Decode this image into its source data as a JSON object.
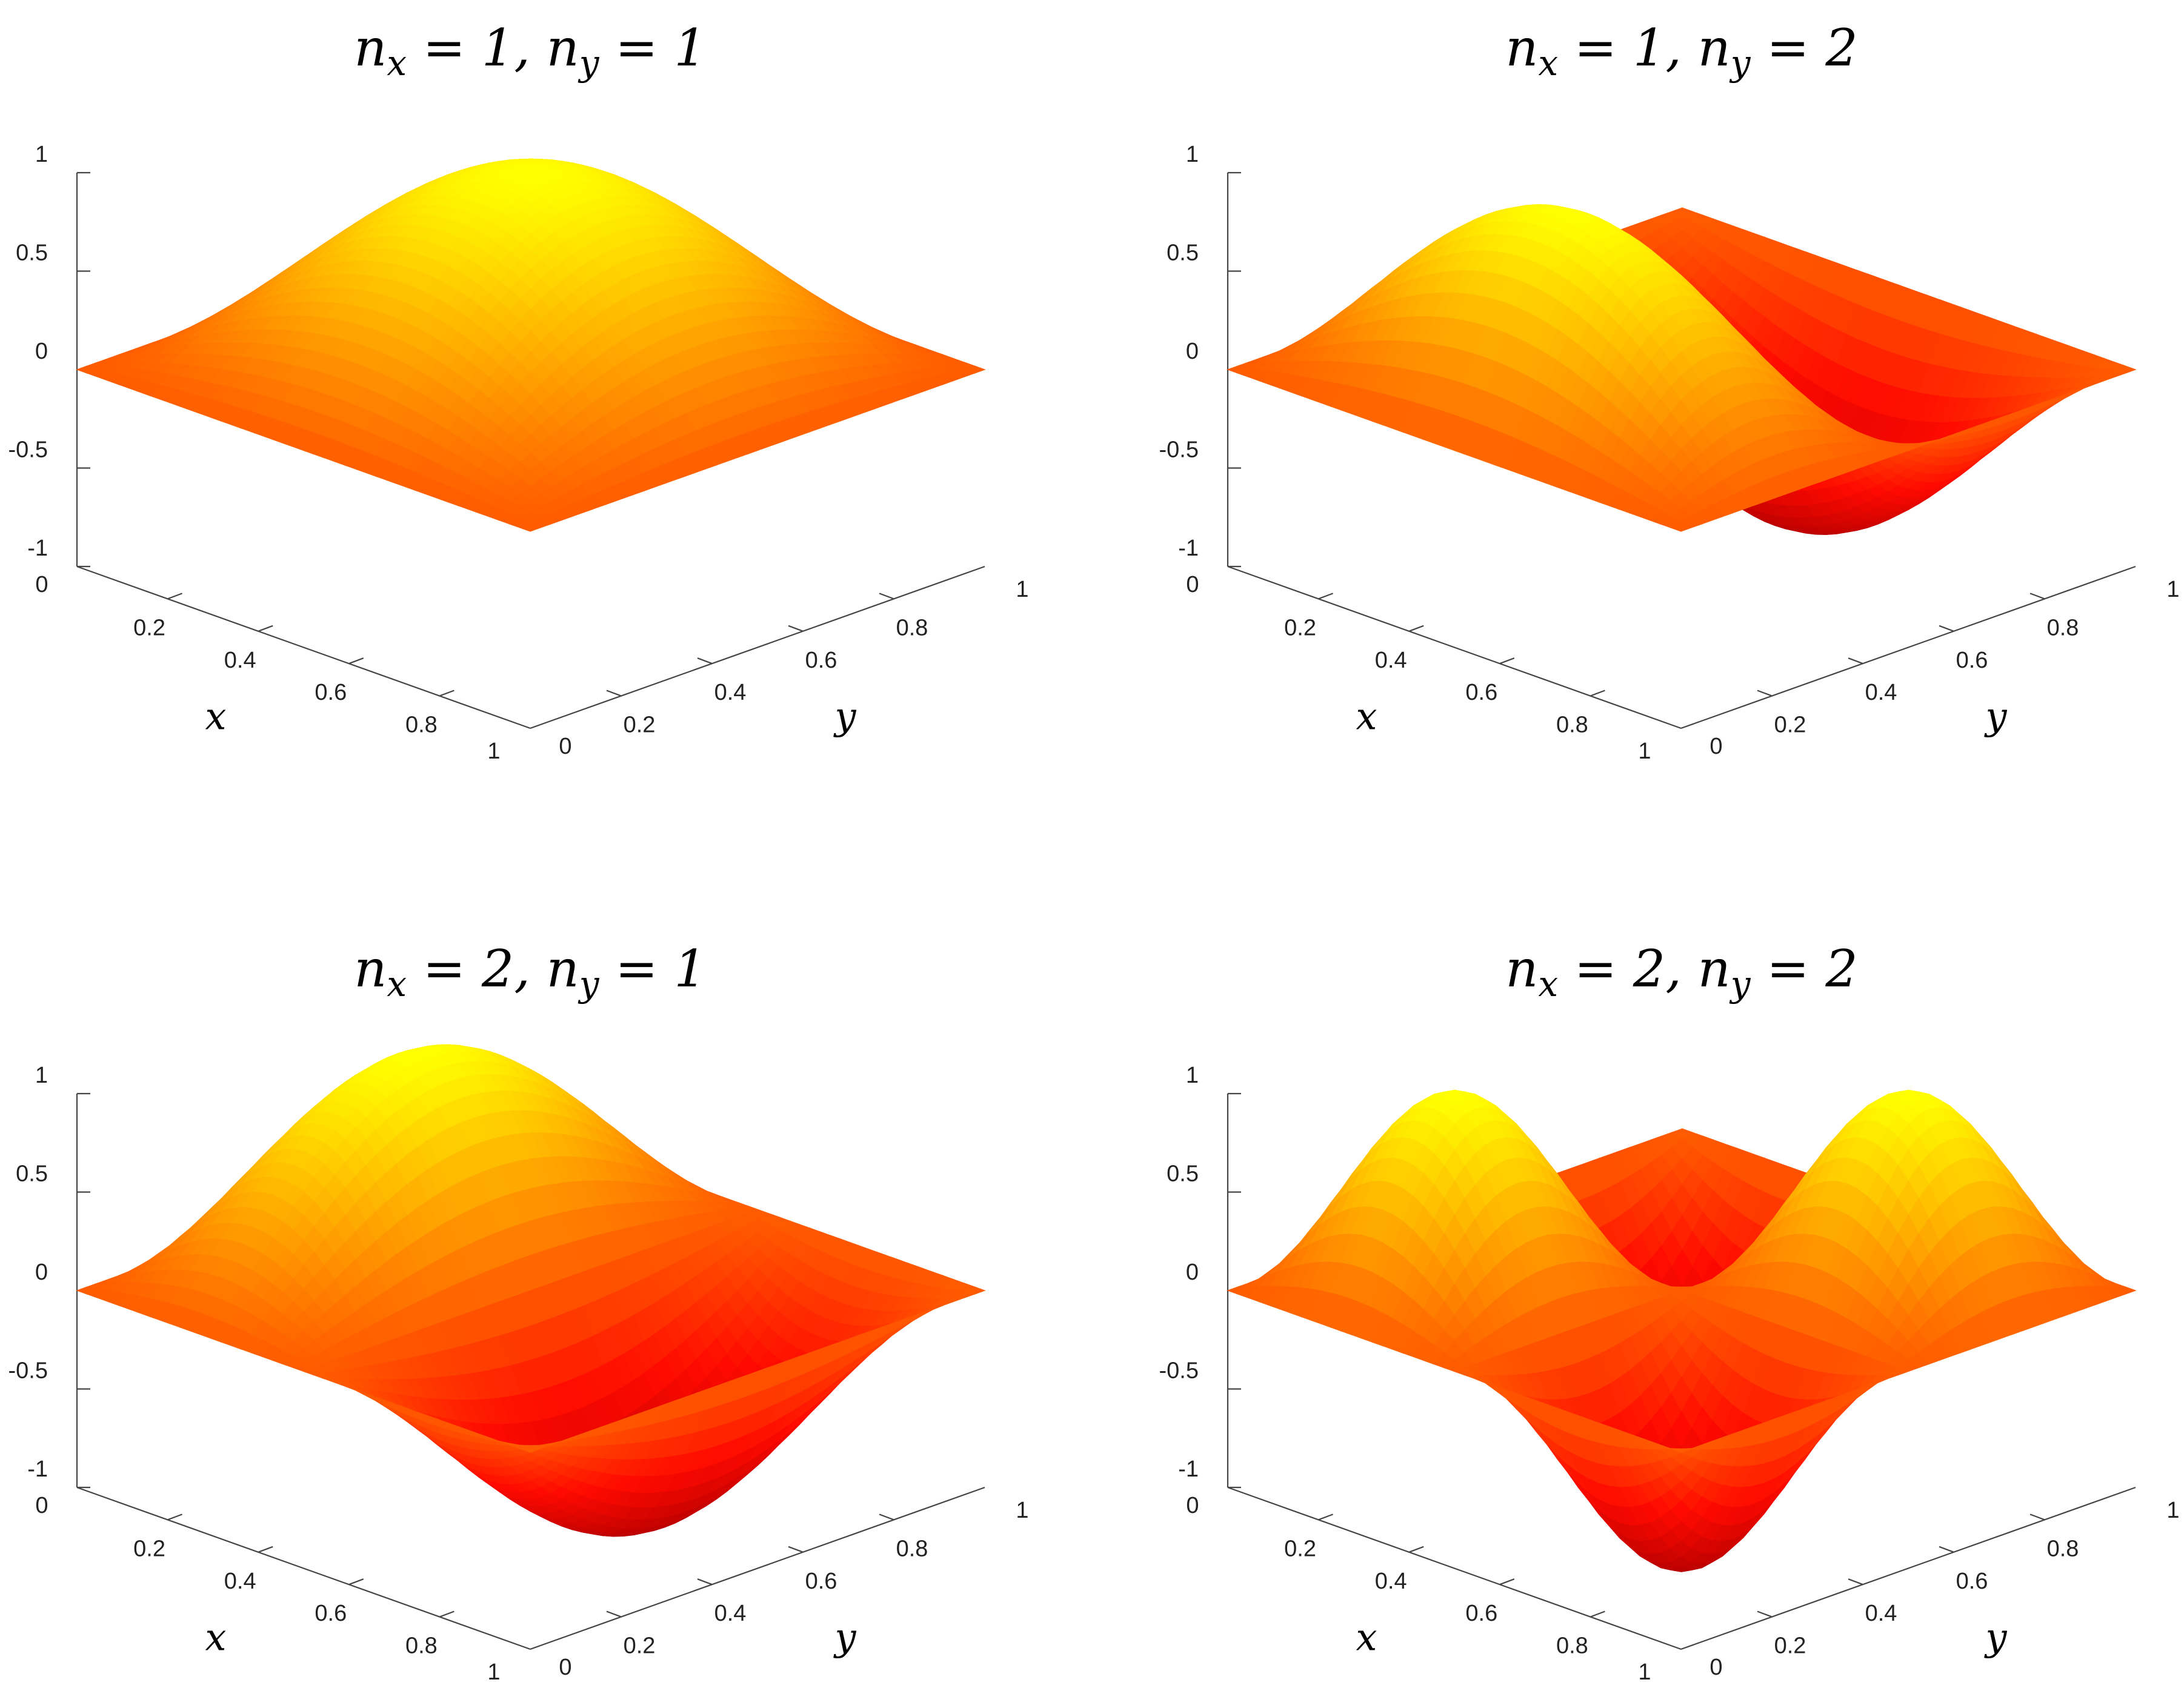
{
  "chart_data": [
    {
      "type": "surface",
      "title": "n_x = 1, n_y = 1",
      "function": "sin(1·π·x)·sin(1·π·y)",
      "nx": 1,
      "ny": 1,
      "xlabel": "x",
      "ylabel": "y",
      "zlabel": "",
      "xlim": [
        0,
        1
      ],
      "ylim": [
        0,
        1
      ],
      "zlim": [
        -1,
        1
      ],
      "x_ticks": [
        "0",
        "0.2",
        "0.4",
        "0.6",
        "0.8",
        "1"
      ],
      "y_ticks": [
        "0",
        "0.2",
        "0.4",
        "0.6",
        "0.8",
        "1"
      ],
      "z_ticks": [
        "-1",
        "-0.5",
        "0",
        "0.5",
        "1"
      ],
      "colormap": "autumn",
      "colormap_low": "#cc0000",
      "colormap_mid": "#ff4500",
      "colormap_high": "#ffff00",
      "grid": false
    },
    {
      "type": "surface",
      "title": "n_x = 1, n_y = 2",
      "function": "sin(1·π·x)·sin(2·π·y)",
      "nx": 1,
      "ny": 2,
      "xlabel": "x",
      "ylabel": "y",
      "zlabel": "",
      "xlim": [
        0,
        1
      ],
      "ylim": [
        0,
        1
      ],
      "zlim": [
        -1,
        1
      ],
      "x_ticks": [
        "0",
        "0.2",
        "0.4",
        "0.6",
        "0.8",
        "1"
      ],
      "y_ticks": [
        "0",
        "0.2",
        "0.4",
        "0.6",
        "0.8",
        "1"
      ],
      "z_ticks": [
        "-1",
        "-0.5",
        "0",
        "0.5",
        "1"
      ],
      "colormap": "autumn",
      "colormap_low": "#cc0000",
      "colormap_mid": "#ff4500",
      "colormap_high": "#ffff00",
      "grid": false
    },
    {
      "type": "surface",
      "title": "n_x = 2, n_y = 1",
      "function": "sin(2·π·x)·sin(1·π·y)",
      "nx": 2,
      "ny": 1,
      "xlabel": "x",
      "ylabel": "y",
      "zlabel": "",
      "xlim": [
        0,
        1
      ],
      "ylim": [
        0,
        1
      ],
      "zlim": [
        -1,
        1
      ],
      "x_ticks": [
        "0",
        "0.2",
        "0.4",
        "0.6",
        "0.8",
        "1"
      ],
      "y_ticks": [
        "0",
        "0.2",
        "0.4",
        "0.6",
        "0.8",
        "1"
      ],
      "z_ticks": [
        "-1",
        "-0.5",
        "0",
        "0.5",
        "1"
      ],
      "colormap": "autumn",
      "colormap_low": "#cc0000",
      "colormap_mid": "#ff4500",
      "colormap_high": "#ffff00",
      "grid": false
    },
    {
      "type": "surface",
      "title": "n_x = 2, n_y = 2",
      "function": "sin(2·π·x)·sin(2·π·y)",
      "nx": 2,
      "ny": 2,
      "xlabel": "x",
      "ylabel": "y",
      "zlabel": "",
      "xlim": [
        0,
        1
      ],
      "ylim": [
        0,
        1
      ],
      "zlim": [
        -1,
        1
      ],
      "x_ticks": [
        "0",
        "0.2",
        "0.4",
        "0.6",
        "0.8",
        "1"
      ],
      "y_ticks": [
        "0",
        "0.2",
        "0.4",
        "0.6",
        "0.8",
        "1"
      ],
      "z_ticks": [
        "-1",
        "-0.5",
        "0",
        "0.5",
        "1"
      ],
      "colormap": "autumn",
      "colormap_low": "#cc0000",
      "colormap_mid": "#ff4500",
      "colormap_high": "#ffff00",
      "grid": false
    }
  ]
}
